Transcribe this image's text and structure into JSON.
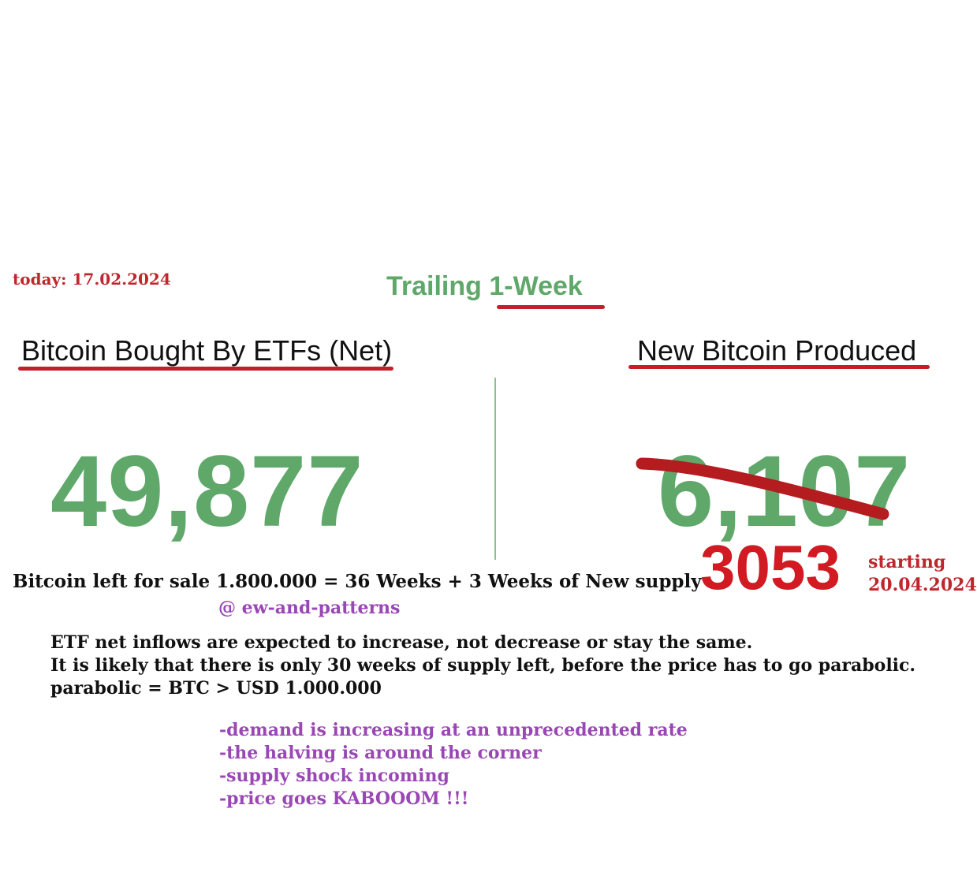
{
  "today": "today: 17.02.2024",
  "trailing": {
    "prefix": "Trailing ",
    "highlight": "1-Week"
  },
  "etf": {
    "heading": "Bitcoin Bought By ETFs (Net)",
    "value": "49,877"
  },
  "new_supply": {
    "heading": "New Bitcoin Produced",
    "value": "6,107",
    "revised_value": "3053",
    "starting_label": "starting",
    "starting_date": "20.04.2024"
  },
  "left_for_sale": "Bitcoin left for sale 1.800.000 = 36 Weeks + 3 Weeks of New supply",
  "handle": "@ ew-and-patterns",
  "paragraph": [
    "ETF net inflows are expected to increase, not decrease or stay the same.",
    "It is likely that there is only 30 weeks of supply left, before the price has to go parabolic.",
    "parabolic = BTC > USD 1.000.000"
  ],
  "bullets": [
    "-demand is increasing at an unprecedented rate",
    "-the halving is around the corner",
    "-supply shock incoming",
    "-price goes KABOOOM !!!"
  ],
  "colors": {
    "green": "#5fa86a",
    "red": "#d11a22",
    "purple": "#9a47b5"
  }
}
